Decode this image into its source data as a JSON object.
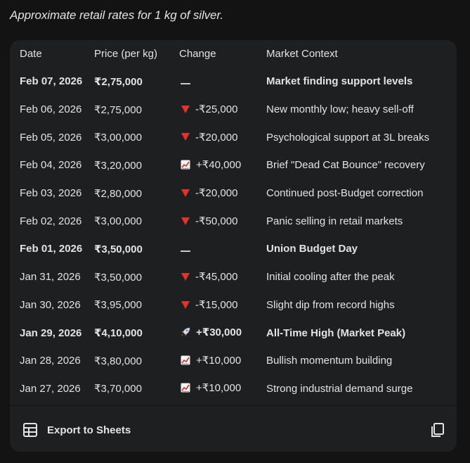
{
  "intro_text": "Approximate retail rates for 1 kg of silver.",
  "table": {
    "headers": [
      "Date",
      "Price (per kg)",
      "Change",
      "Market Context"
    ],
    "rows": [
      {
        "date": "Feb 07, 2026",
        "price": "₹2,75,000",
        "change_icon": "dash-icon",
        "change": "",
        "context": "Market finding support levels",
        "bold": true
      },
      {
        "date": "Feb 06, 2026",
        "price": "₹2,75,000",
        "change_icon": "down-triangle-icon",
        "change": "-₹25,000",
        "context": "New monthly low; heavy sell-off",
        "bold": false
      },
      {
        "date": "Feb 05, 2026",
        "price": "₹3,00,000",
        "change_icon": "down-triangle-icon",
        "change": "-₹20,000",
        "context": "Psychological support at 3L breaks",
        "bold": false
      },
      {
        "date": "Feb 04, 2026",
        "price": "₹3,20,000",
        "change_icon": "chart-up-icon",
        "change": "+₹40,000",
        "context": "Brief \"Dead Cat Bounce\" recovery",
        "bold": false
      },
      {
        "date": "Feb 03, 2026",
        "price": "₹2,80,000",
        "change_icon": "down-triangle-icon",
        "change": "-₹20,000",
        "context": "Continued post-Budget correction",
        "bold": false
      },
      {
        "date": "Feb 02, 2026",
        "price": "₹3,00,000",
        "change_icon": "down-triangle-icon",
        "change": "-₹50,000",
        "context": "Panic selling in retail markets",
        "bold": false
      },
      {
        "date": "Feb 01, 2026",
        "price": "₹3,50,000",
        "change_icon": "dash-icon",
        "change": "",
        "context": "Union Budget Day",
        "bold": true
      },
      {
        "date": "Jan 31, 2026",
        "price": "₹3,50,000",
        "change_icon": "down-triangle-icon",
        "change": "-₹45,000",
        "context": "Initial cooling after the peak",
        "bold": false
      },
      {
        "date": "Jan 30, 2026",
        "price": "₹3,95,000",
        "change_icon": "down-triangle-icon",
        "change": "-₹15,000",
        "context": "Slight dip from record highs",
        "bold": false
      },
      {
        "date": "Jan 29, 2026",
        "price": "₹4,10,000",
        "change_icon": "rocket-icon",
        "change": "+₹30,000",
        "context": "All-Time High (Market Peak)",
        "bold": true
      },
      {
        "date": "Jan 28, 2026",
        "price": "₹3,80,000",
        "change_icon": "chart-up-icon",
        "change": "+₹10,000",
        "context": "Bullish momentum building",
        "bold": false
      },
      {
        "date": "Jan 27, 2026",
        "price": "₹3,70,000",
        "change_icon": "chart-up-icon",
        "change": "+₹10,000",
        "context": "Strong industrial demand surge",
        "bold": false
      }
    ]
  },
  "footer": {
    "export_label": "Export to Sheets",
    "export_icon": "table-grid-icon",
    "copy_icon": "copy-icon"
  },
  "colors": {
    "background": "#131314",
    "card": "#1e1f20",
    "text": "#e3e3e3",
    "down": "#e0342b"
  }
}
